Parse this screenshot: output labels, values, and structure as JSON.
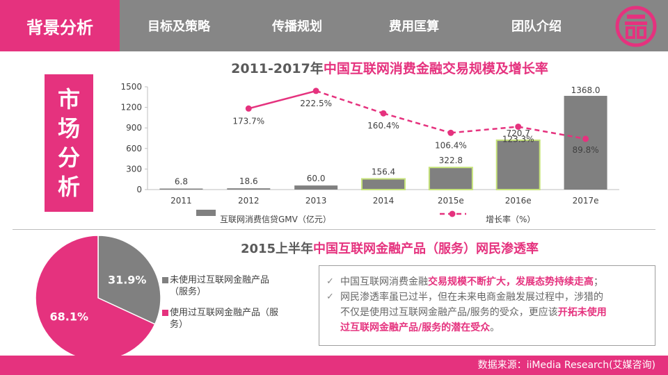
{
  "nav": {
    "active": "背景分析",
    "tabs": [
      "目标及策略",
      "传播规划",
      "费用匡算",
      "团队介绍"
    ]
  },
  "side_label": [
    "市",
    "场",
    "分",
    "析"
  ],
  "chart_data": [
    {
      "type": "bar",
      "title_prefix": "2011-2017年",
      "title_highlight": "中国互联网消费金融交易规模及增长率",
      "categories": [
        "2011",
        "2012",
        "2013",
        "2014",
        "2015e",
        "2016e",
        "2017e"
      ],
      "ylim": [
        0,
        1500
      ],
      "yticks": [
        0,
        300,
        600,
        900,
        1200,
        1500
      ],
      "series": [
        {
          "name": "互联网消费信贷GMV（亿元）",
          "values": [
            6.8,
            18.6,
            60.0,
            156.4,
            322.8,
            720.7,
            1368.0
          ],
          "labels": [
            "6.8",
            "18.6",
            "60.0",
            "156.4",
            "322.8",
            "720.7",
            "1368.0"
          ]
        },
        {
          "name": "增长率（%）",
          "type": "line",
          "values": [
            null,
            173.7,
            222.5,
            160.4,
            106.4,
            123.3,
            89.8
          ],
          "labels": [
            "",
            "173.7%",
            "222.5%",
            "160.4%",
            "106.4%",
            "123.3%",
            "89.8%"
          ]
        }
      ],
      "colors": {
        "bar": "#808080",
        "bar_outline": "#c6e37a",
        "line": "#e5327e"
      }
    },
    {
      "type": "pie",
      "title_prefix": "2015上半年",
      "title_highlight": "中国互联网金融产品（服务）网民渗透率",
      "slices": [
        {
          "label": "未使用过互联网金融产品（服务）",
          "value": 31.9,
          "text": "31.9%",
          "color": "#808080"
        },
        {
          "label": "使用过互联网金融产品（服务）",
          "value": 68.1,
          "text": "68.1%",
          "color": "#e5327e"
        }
      ]
    }
  ],
  "legend_pie": {
    "item1_line1": "未使用过互联网金融产品",
    "item1_line2": "（服务）",
    "item2_line1": "使用过互联网金融产品（服",
    "item2_line2": "务）"
  },
  "notes": {
    "line1_a": "中国互联网消费金融",
    "line1_b": "交易规模不断扩大，发展态势持续走高",
    "line1_c": "；",
    "line2_a": "网民渗透率虽已过半，但在未来电商金融发展过程中，涉猎的",
    "line2_b": "不仅是使用过互联网金融产品/服务的受众，更应该",
    "line2_c": "开拓未使用",
    "line2_d": "过互联网金融产品/服务的潜在受众",
    "line2_e": "。"
  },
  "footer": {
    "source": "数据来源：iiMedia Research(艾媒咨询)"
  }
}
